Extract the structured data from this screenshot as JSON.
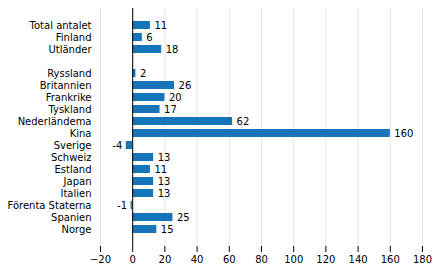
{
  "chart_data": {
    "type": "bar",
    "orientation": "horizontal",
    "categories": [
      "Norge",
      "Spanien",
      "Förenta Staterna",
      "Italien",
      "Japan",
      "Estland",
      "Schweiz",
      "Sverige",
      "Kina",
      "Nederländema",
      "Tyskland",
      "Frankrike",
      "Britannien",
      "Ryssland",
      null,
      "Utländer",
      "Finland",
      "Total antalet"
    ],
    "values": [
      15,
      25,
      -1,
      13,
      13,
      11,
      13,
      -4,
      160,
      62,
      17,
      20,
      26,
      2,
      null,
      18,
      6,
      11
    ],
    "color": "#1874b8",
    "xlim": [
      -20,
      180
    ],
    "xticks": [
      -20,
      0,
      20,
      40,
      60,
      80,
      100,
      120,
      140,
      160,
      180
    ],
    "grid": true,
    "data_labels": true
  }
}
